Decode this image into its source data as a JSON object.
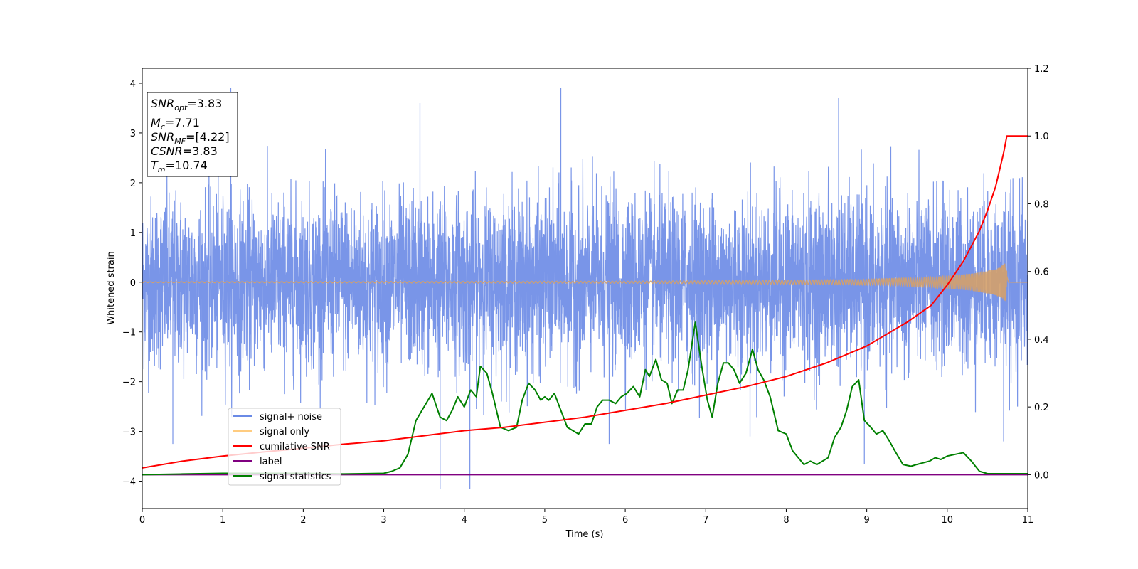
{
  "chart_data": {
    "type": "line",
    "xlabel": "Time (s)",
    "ylabel": "Whitened strain",
    "xlim": [
      0,
      11
    ],
    "ylim": [
      -4.55,
      4.3
    ],
    "y2lim": [
      -0.1,
      1.2
    ],
    "x_ticks": [
      "0",
      "1",
      "2",
      "3",
      "4",
      "5",
      "6",
      "7",
      "8",
      "9",
      "10",
      "11"
    ],
    "y_ticks": [
      "4",
      "3",
      "2",
      "1",
      "0",
      "−1",
      "−2",
      "−3",
      "−4"
    ],
    "y2_ticks": [
      "1.2",
      "1.0",
      "0.8",
      "0.6",
      "0.4",
      "0.2",
      "0.0"
    ],
    "info_box": {
      "snr_opt": {
        "base": "SNR",
        "sub": "opt",
        "value": "=3.83"
      },
      "mc": {
        "base": "M",
        "sub": "c",
        "value": "=7.71"
      },
      "snr_mf": {
        "base": "SNR",
        "sub": "MF",
        "value": "=[4.22]"
      },
      "csnr": {
        "base": "CSNR",
        "value": "=3.83"
      },
      "tm": {
        "base": "T",
        "sub": "m",
        "value": "=10.74"
      }
    },
    "legend": {
      "position": "lower-left",
      "entries": [
        {
          "label": "signal+ noise",
          "color": "#6a8ae6"
        },
        {
          "label": "signal only",
          "color": "#ffcc80"
        },
        {
          "label": "cumilative SNR",
          "color": "#ff0000"
        },
        {
          "label": "label",
          "color": "#800080"
        },
        {
          "label": "signal statistics",
          "color": "#008000"
        }
      ]
    },
    "series": [
      {
        "name": "signal+ noise",
        "axis": "left",
        "color": "#6a8ae6",
        "description": "whitened noise, amplitude ~ +/-2 with spikes to about +/-4",
        "spikes": [
          [
            1.1,
            3.9
          ],
          [
            3.45,
            3.6
          ],
          [
            5.2,
            3.9
          ],
          [
            8.65,
            3.7
          ],
          [
            3.7,
            -4.15
          ],
          [
            4.07,
            -4.15
          ],
          [
            0.38,
            -3.25
          ],
          [
            8.97,
            -3.65
          ],
          [
            5.8,
            -3.25
          ],
          [
            7.55,
            -3.1
          ],
          [
            10.7,
            -3.2
          ]
        ]
      },
      {
        "name": "signal only",
        "axis": "left",
        "color": "#d4a06a",
        "description": "chirp, amplitude growing toward merger",
        "t_merger": 10.74,
        "envelope": [
          [
            0,
            0.01
          ],
          [
            6,
            0.02
          ],
          [
            8,
            0.04
          ],
          [
            9,
            0.06
          ],
          [
            9.8,
            0.1
          ],
          [
            10.3,
            0.17
          ],
          [
            10.6,
            0.26
          ],
          [
            10.74,
            0.4
          ]
        ]
      },
      {
        "name": "cumilative SNR",
        "axis": "right",
        "color": "#ff0000",
        "x": [
          0,
          0.5,
          1,
          1.5,
          2,
          2.5,
          3,
          3.5,
          4,
          4.5,
          5,
          5.5,
          6,
          6.5,
          7,
          7.5,
          8,
          8.5,
          9,
          9.5,
          9.8,
          10.0,
          10.2,
          10.4,
          10.5,
          10.6,
          10.65,
          10.7,
          10.74,
          11
        ],
        "y": [
          0.02,
          0.04,
          0.055,
          0.067,
          0.078,
          0.09,
          0.1,
          0.115,
          0.13,
          0.14,
          0.155,
          0.17,
          0.19,
          0.21,
          0.235,
          0.26,
          0.29,
          0.33,
          0.38,
          0.45,
          0.5,
          0.56,
          0.63,
          0.72,
          0.78,
          0.85,
          0.9,
          0.95,
          1.0,
          1.0
        ]
      },
      {
        "name": "label",
        "axis": "right",
        "color": "#800080",
        "x": [
          0,
          11
        ],
        "y": [
          0,
          0
        ]
      },
      {
        "name": "signal statistics",
        "axis": "right",
        "color": "#008000",
        "x": [
          0,
          0.5,
          1,
          2,
          2.5,
          3,
          3.1,
          3.2,
          3.3,
          3.4,
          3.5,
          3.6,
          3.7,
          3.78,
          3.85,
          3.92,
          4.0,
          4.08,
          4.15,
          4.2,
          4.28,
          4.35,
          4.45,
          4.55,
          4.65,
          4.72,
          4.8,
          4.88,
          4.95,
          5.0,
          5.05,
          5.12,
          5.2,
          5.28,
          5.35,
          5.42,
          5.5,
          5.58,
          5.65,
          5.72,
          5.8,
          5.88,
          5.95,
          6.02,
          6.1,
          6.18,
          6.25,
          6.3,
          6.38,
          6.45,
          6.52,
          6.58,
          6.65,
          6.72,
          6.78,
          6.87,
          6.95,
          7.02,
          7.08,
          7.15,
          7.22,
          7.28,
          7.35,
          7.42,
          7.5,
          7.58,
          7.65,
          7.72,
          7.8,
          7.9,
          8.0,
          8.08,
          8.15,
          8.22,
          8.3,
          8.38,
          8.45,
          8.52,
          8.6,
          8.68,
          8.75,
          8.82,
          8.9,
          8.97,
          9.05,
          9.12,
          9.2,
          9.28,
          9.35,
          9.45,
          9.55,
          9.62,
          9.7,
          9.78,
          9.85,
          9.92,
          10.0,
          10.1,
          10.2,
          10.3,
          10.4,
          10.5,
          11
        ],
        "y": [
          0,
          0.002,
          0.004,
          0.004,
          0.002,
          0.004,
          0.01,
          0.02,
          0.06,
          0.16,
          0.2,
          0.24,
          0.17,
          0.16,
          0.19,
          0.23,
          0.2,
          0.25,
          0.23,
          0.32,
          0.3,
          0.24,
          0.14,
          0.13,
          0.14,
          0.22,
          0.27,
          0.25,
          0.22,
          0.23,
          0.22,
          0.24,
          0.19,
          0.14,
          0.13,
          0.12,
          0.15,
          0.15,
          0.2,
          0.22,
          0.22,
          0.21,
          0.23,
          0.24,
          0.26,
          0.23,
          0.31,
          0.29,
          0.34,
          0.28,
          0.27,
          0.21,
          0.25,
          0.25,
          0.31,
          0.45,
          0.32,
          0.22,
          0.17,
          0.27,
          0.33,
          0.33,
          0.31,
          0.27,
          0.3,
          0.37,
          0.31,
          0.28,
          0.23,
          0.13,
          0.12,
          0.07,
          0.05,
          0.03,
          0.04,
          0.03,
          0.04,
          0.05,
          0.11,
          0.14,
          0.19,
          0.26,
          0.28,
          0.16,
          0.14,
          0.12,
          0.13,
          0.1,
          0.07,
          0.03,
          0.025,
          0.03,
          0.035,
          0.04,
          0.05,
          0.045,
          0.055,
          0.06,
          0.065,
          0.04,
          0.01,
          0.003,
          0.003
        ]
      }
    ]
  }
}
